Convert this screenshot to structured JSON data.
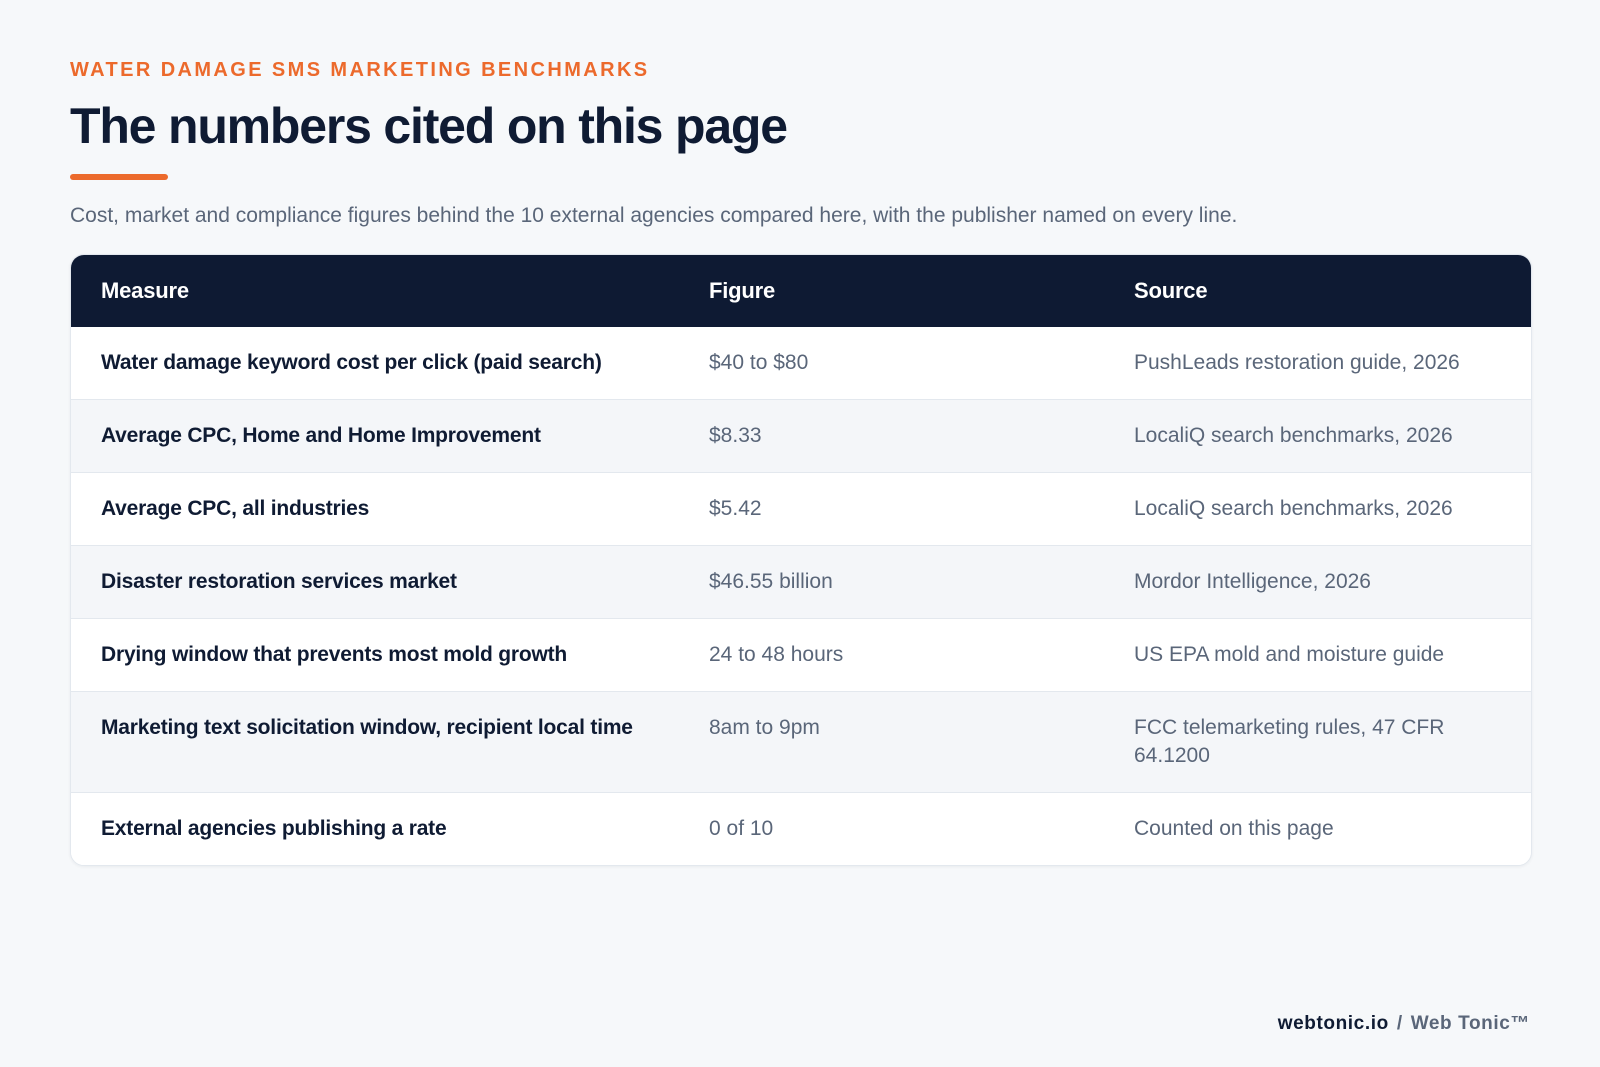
{
  "header": {
    "eyebrow": "WATER DAMAGE SMS MARKETING BENCHMARKS",
    "title": "The numbers cited on this page",
    "subtitle": "Cost, market and compliance figures behind the 10 external agencies compared here, with the publisher named on every line."
  },
  "table": {
    "columns": [
      "Measure",
      "Figure",
      "Source"
    ],
    "rows": [
      {
        "measure": "Water damage keyword cost per click (paid search)",
        "figure": "$40 to $80",
        "source": "PushLeads restoration guide, 2026"
      },
      {
        "measure": "Average CPC, Home and Home Improvement",
        "figure": "$8.33",
        "source": "LocaliQ search benchmarks, 2026"
      },
      {
        "measure": "Average CPC, all industries",
        "figure": "$5.42",
        "source": "LocaliQ search benchmarks, 2026"
      },
      {
        "measure": "Disaster restoration services market",
        "figure": "$46.55 billion",
        "source": "Mordor Intelligence, 2026"
      },
      {
        "measure": "Drying window that prevents most mold growth",
        "figure": "24 to 48 hours",
        "source": "US EPA mold and moisture guide"
      },
      {
        "measure": "Marketing text solicitation window, recipient local time",
        "figure": "8am to 9pm",
        "source": "FCC telemarketing rules, 47 CFR 64.1200"
      },
      {
        "measure": "External agencies publishing a rate",
        "figure": "0 of 10",
        "source": "Counted on this page"
      }
    ]
  },
  "footer": {
    "domain": "webtonic.io",
    "separator": "/",
    "brand": "Web Tonic™"
  },
  "colors": {
    "accent": "#ec6a2c",
    "navy": "#0e1a33",
    "muted": "#5a6679",
    "background": "#f6f8fa"
  }
}
